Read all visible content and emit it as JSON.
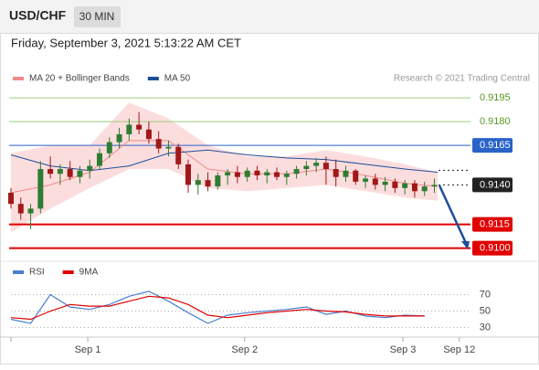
{
  "header": {
    "symbol": "USD/CHF",
    "timeframe": "30 MIN",
    "datetime": "Friday, September 3, 2021 5:13:22 AM CET"
  },
  "chart_data": [
    {
      "type": "candlestick",
      "credit": "Research © 2021 Trading Central",
      "up_color": "#2e7d32",
      "down_color": "#a01818",
      "x": [
        0,
        1.5,
        3,
        4.5,
        6,
        7.5,
        9,
        10.5,
        12,
        13.5,
        15,
        16.5,
        18,
        19.5,
        21,
        22.5,
        24,
        25.5,
        27,
        28.5,
        30,
        31.5,
        33,
        34.5,
        36,
        37.5,
        39,
        40.5,
        42,
        43.5,
        45,
        46.5,
        48,
        49.5,
        51,
        52.5,
        54,
        55.5,
        57,
        58.5,
        60,
        61.5,
        63,
        64.5
      ],
      "open": [
        0.9135,
        0.9128,
        0.9122,
        0.9125,
        0.915,
        0.9147,
        0.915,
        0.9145,
        0.9149,
        0.9152,
        0.916,
        0.9167,
        0.9172,
        0.9178,
        0.9175,
        0.9169,
        0.9163,
        0.9164,
        0.9153,
        0.914,
        0.9143,
        0.9139,
        0.9146,
        0.9148,
        0.9145,
        0.9149,
        0.9146,
        0.9148,
        0.9145,
        0.9147,
        0.915,
        0.9152,
        0.9154,
        0.915,
        0.9145,
        0.9149,
        0.9142,
        0.9144,
        0.914,
        0.9142,
        0.9138,
        0.9141,
        0.9136,
        0.9139
      ],
      "high": [
        0.9138,
        0.9132,
        0.9128,
        0.9155,
        0.9158,
        0.9153,
        0.9155,
        0.9152,
        0.9156,
        0.9163,
        0.917,
        0.9176,
        0.9182,
        0.9186,
        0.918,
        0.9174,
        0.9168,
        0.9166,
        0.9156,
        0.9147,
        0.9148,
        0.9148,
        0.915,
        0.9152,
        0.9151,
        0.9152,
        0.915,
        0.9151,
        0.9149,
        0.9152,
        0.9155,
        0.9157,
        0.9158,
        0.9156,
        0.9152,
        0.915,
        0.9146,
        0.9147,
        0.9145,
        0.9144,
        0.9143,
        0.9143,
        0.9142,
        0.9144
      ],
      "low": [
        0.9125,
        0.9118,
        0.9112,
        0.9122,
        0.9144,
        0.914,
        0.9143,
        0.9141,
        0.9144,
        0.915,
        0.9157,
        0.9163,
        0.9168,
        0.9172,
        0.9166,
        0.916,
        0.9158,
        0.915,
        0.9135,
        0.9134,
        0.9136,
        0.9137,
        0.914,
        0.9141,
        0.9142,
        0.9143,
        0.9141,
        0.9143,
        0.914,
        0.9144,
        0.9146,
        0.9148,
        0.914,
        0.9139,
        0.9142,
        0.914,
        0.9138,
        0.9137,
        0.9136,
        0.9135,
        0.9134,
        0.9132,
        0.9133,
        0.9135
      ],
      "close": [
        0.9128,
        0.9122,
        0.9125,
        0.915,
        0.9147,
        0.915,
        0.9145,
        0.9149,
        0.9152,
        0.916,
        0.9167,
        0.9172,
        0.9178,
        0.9175,
        0.9169,
        0.9163,
        0.9164,
        0.9153,
        0.914,
        0.9143,
        0.9139,
        0.9146,
        0.9148,
        0.9145,
        0.9149,
        0.9146,
        0.9148,
        0.9145,
        0.9147,
        0.915,
        0.9152,
        0.9154,
        0.915,
        0.9145,
        0.9149,
        0.9142,
        0.9144,
        0.914,
        0.9142,
        0.9138,
        0.9141,
        0.9136,
        0.9139,
        0.914
      ],
      "series": [
        {
          "name": "MA 20 + Bollinger Bands",
          "color": "#f08a8a",
          "band_color": "#fbd5d5",
          "x": [
            0,
            6,
            12,
            18,
            24,
            30,
            36,
            42,
            48,
            54,
            60,
            65
          ],
          "values": [
            0.9135,
            0.914,
            0.9148,
            0.9168,
            0.9168,
            0.915,
            0.9147,
            0.9147,
            0.915,
            0.9146,
            0.9141,
            0.9139
          ],
          "upper": [
            0.916,
            0.9165,
            0.9165,
            0.9192,
            0.9182,
            0.9165,
            0.9158,
            0.9158,
            0.9162,
            0.9158,
            0.9153,
            0.9148
          ],
          "lower": [
            0.911,
            0.9125,
            0.9138,
            0.915,
            0.915,
            0.9138,
            0.9136,
            0.9138,
            0.914,
            0.9136,
            0.9132,
            0.913
          ]
        },
        {
          "name": "MA 50",
          "color": "#1f4e99",
          "x": [
            0,
            6,
            12,
            18,
            24,
            30,
            36,
            42,
            48,
            54,
            60,
            65
          ],
          "values": [
            0.9159,
            0.9152,
            0.9149,
            0.9152,
            0.916,
            0.9162,
            0.9159,
            0.9157,
            0.9156,
            0.9153,
            0.915,
            0.9148
          ]
        }
      ],
      "xlim": [
        0,
        70
      ],
      "ylim": [
        0.9092,
        0.9202
      ],
      "yticks": [
        {
          "value": 0.91,
          "label": "0.9100"
        },
        {
          "value": 0.9115,
          "label": "0.9115"
        },
        {
          "value": 0.914,
          "label": "0.9140"
        },
        {
          "value": 0.9165,
          "label": "0.9165"
        },
        {
          "value": 0.918,
          "label": "0.9180"
        },
        {
          "value": 0.9195,
          "label": "0.9195"
        }
      ],
      "level_colors": [
        "#e00000",
        "#e00000",
        "#222222",
        "#2a63c8",
        "#9ccc7a",
        "#9ccc7a"
      ],
      "level_text_colors": [
        "#ffffff",
        "#ffffff",
        "#ffffff",
        "#ffffff",
        "#5a9a20",
        "#5a9a20"
      ],
      "level_styles": [
        "solid",
        "solid",
        "dotted",
        "solid",
        "solid",
        "solid"
      ],
      "level_boxed": [
        true,
        true,
        true,
        true,
        false,
        false
      ]
    },
    {
      "type": "line",
      "series": [
        {
          "name": "RSI",
          "color": "#4a7fd0",
          "x": [
            0,
            3,
            6,
            9,
            12,
            15,
            18,
            21,
            24,
            27,
            30,
            33,
            36,
            39,
            42,
            45,
            48,
            51,
            54,
            57,
            60,
            63
          ],
          "values": [
            40,
            35,
            70,
            55,
            52,
            58,
            68,
            74,
            62,
            48,
            35,
            45,
            48,
            50,
            52,
            55,
            46,
            50,
            44,
            42,
            45,
            44
          ]
        },
        {
          "name": "9MA",
          "color": "#e00000",
          "x": [
            0,
            3,
            6,
            9,
            12,
            15,
            18,
            21,
            24,
            27,
            30,
            33,
            36,
            39,
            42,
            45,
            48,
            51,
            54,
            57,
            60,
            63
          ],
          "values": [
            42,
            40,
            50,
            58,
            56,
            56,
            62,
            68,
            66,
            58,
            45,
            42,
            45,
            48,
            50,
            52,
            50,
            49,
            46,
            44,
            44,
            44
          ]
        }
      ],
      "xlim": [
        0,
        70
      ],
      "ylim": [
        15,
        95
      ],
      "yticks": [
        30,
        50,
        70
      ],
      "grid": true,
      "xticks": [
        {
          "value": 11.7,
          "label": "Sep 1"
        },
        {
          "value": 35.6,
          "label": "Sep 2"
        },
        {
          "value": 59.7,
          "label": "Sep 3"
        },
        {
          "value": 68.3,
          "label": "Sep 12"
        }
      ]
    }
  ]
}
